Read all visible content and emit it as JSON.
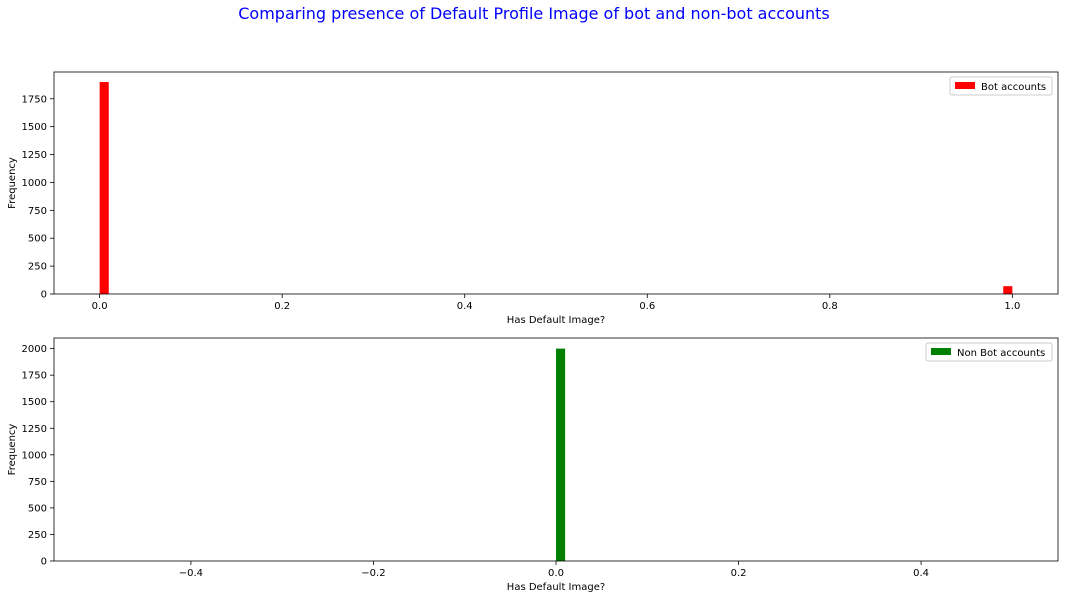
{
  "figure": {
    "title": "Comparing presence of Default Profile Image of bot and non-bot accounts",
    "title_color": "#0000ff"
  },
  "chart_data": [
    {
      "type": "bar",
      "title": "",
      "xlabel": "Has Default Image?",
      "ylabel": "Frequency",
      "xlim": [
        -0.05,
        1.05
      ],
      "ylim": [
        0,
        1990
      ],
      "x_ticks": [
        0.0,
        0.2,
        0.4,
        0.6,
        0.8,
        1.0
      ],
      "x_tick_labels": [
        "0.0",
        "0.2",
        "0.4",
        "0.6",
        "0.8",
        "1.0"
      ],
      "y_ticks": [
        0,
        250,
        500,
        750,
        1000,
        1250,
        1500,
        1750
      ],
      "y_tick_labels": [
        "0",
        "250",
        "500",
        "750",
        "1000",
        "1250",
        "1500",
        "1750"
      ],
      "grid": false,
      "legend_position": "top-right",
      "series": [
        {
          "name": "Bot accounts",
          "color": "#ff0000",
          "bin_width": 0.01,
          "x": [
            0.0,
            0.99
          ],
          "values": [
            1900,
            70
          ]
        }
      ]
    },
    {
      "type": "bar",
      "title": "",
      "xlabel": "Has Default Image?",
      "ylabel": "Frequency",
      "xlim": [
        -0.55,
        0.55
      ],
      "ylim": [
        0,
        2100
      ],
      "x_ticks": [
        -0.4,
        -0.2,
        0.0,
        0.2,
        0.4
      ],
      "x_tick_labels": [
        "−0.4",
        "−0.2",
        "0.0",
        "0.2",
        "0.4"
      ],
      "y_ticks": [
        0,
        250,
        500,
        750,
        1000,
        1250,
        1500,
        1750,
        2000
      ],
      "y_tick_labels": [
        "0",
        "250",
        "500",
        "750",
        "1000",
        "1250",
        "1500",
        "1750",
        "2000"
      ],
      "grid": false,
      "legend_position": "top-right",
      "series": [
        {
          "name": "Non Bot accounts",
          "color": "#008000",
          "bin_width": 0.01,
          "x": [
            0.0
          ],
          "values": [
            2000
          ]
        }
      ]
    }
  ]
}
